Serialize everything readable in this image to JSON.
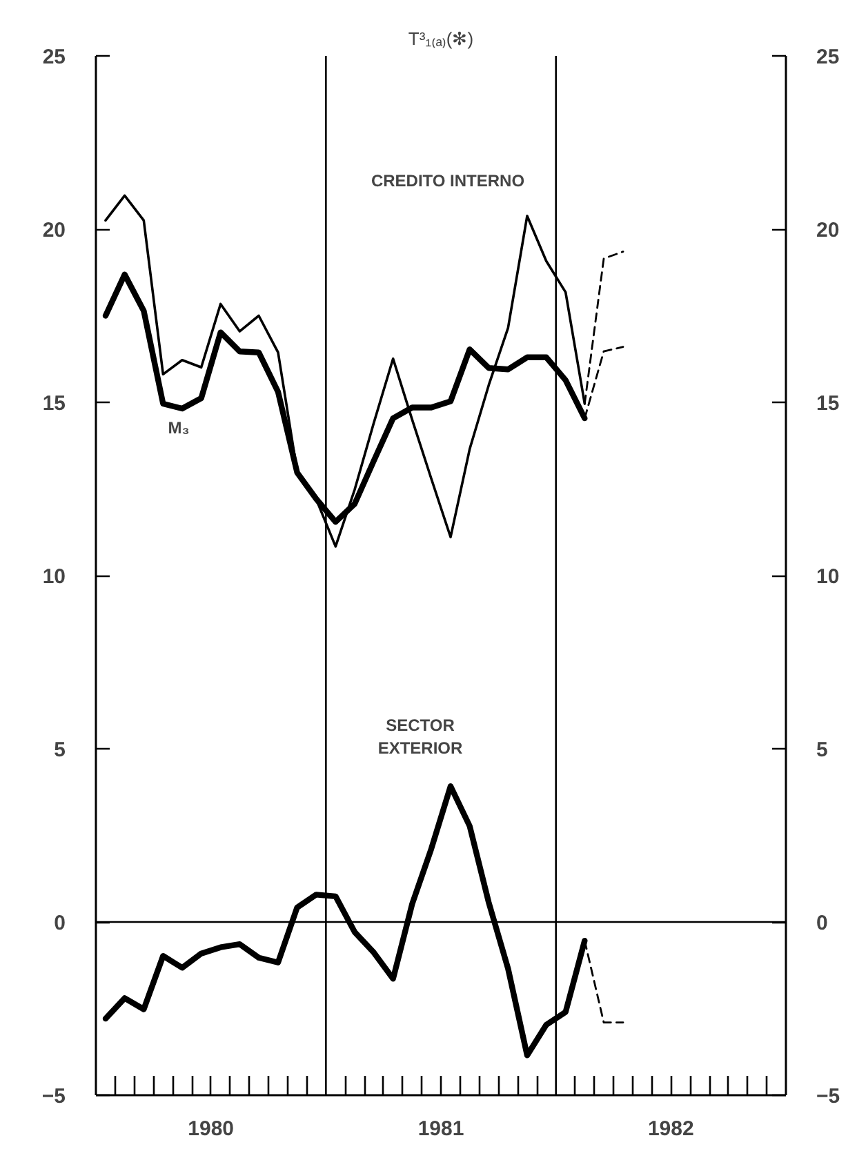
{
  "chart_data": {
    "type": "line",
    "subtitle": "T³₁₍ₐ₎(✻)",
    "xlim": [
      1980,
      1983
    ],
    "ylim": [
      -5,
      25
    ],
    "yticks": [
      -5,
      0,
      5,
      10,
      15,
      20,
      25
    ],
    "y2lim": [
      -5,
      25
    ],
    "y2ticks": [
      -5,
      0,
      5,
      10,
      15,
      20,
      25
    ],
    "xticks": [
      {
        "value": 1980.083,
        "label": null
      },
      {
        "value": 1980.167,
        "label": null
      },
      {
        "value": 1980.25,
        "label": null
      },
      {
        "value": 1980.333,
        "label": null
      },
      {
        "value": 1980.417,
        "label": null
      },
      {
        "value": 1980.5,
        "label": "1980"
      },
      {
        "value": 1980.583,
        "label": null
      },
      {
        "value": 1980.667,
        "label": null
      },
      {
        "value": 1980.75,
        "label": null
      },
      {
        "value": 1980.833,
        "label": null
      },
      {
        "value": 1980.917,
        "label": null
      },
      {
        "value": 1981.083,
        "label": null
      },
      {
        "value": 1981.167,
        "label": null
      },
      {
        "value": 1981.25,
        "label": null
      },
      {
        "value": 1981.333,
        "label": null
      },
      {
        "value": 1981.417,
        "label": null
      },
      {
        "value": 1981.5,
        "label": "1981"
      },
      {
        "value": 1981.583,
        "label": null
      },
      {
        "value": 1981.667,
        "label": null
      },
      {
        "value": 1981.75,
        "label": null
      },
      {
        "value": 1981.833,
        "label": null
      },
      {
        "value": 1981.917,
        "label": null
      },
      {
        "value": 1982.083,
        "label": null
      },
      {
        "value": 1982.167,
        "label": null
      },
      {
        "value": 1982.25,
        "label": null
      },
      {
        "value": 1982.333,
        "label": null
      },
      {
        "value": 1982.417,
        "label": null
      },
      {
        "value": 1982.5,
        "label": "1982"
      },
      {
        "value": 1982.583,
        "label": null
      },
      {
        "value": 1982.667,
        "label": null
      },
      {
        "value": 1982.75,
        "label": null
      },
      {
        "value": 1982.833,
        "label": null
      },
      {
        "value": 1982.917,
        "label": null
      }
    ],
    "x": [
      1980.042,
      1980.125,
      1980.208,
      1980.292,
      1980.375,
      1980.458,
      1980.542,
      1980.625,
      1980.708,
      1980.792,
      1980.875,
      1980.958,
      1981.042,
      1981.125,
      1981.208,
      1981.292,
      1981.375,
      1981.458,
      1981.542,
      1981.625,
      1981.708,
      1981.792,
      1981.875,
      1981.958,
      1982.042,
      1982.125
    ],
    "series": [
      {
        "color": "#000000",
        "values": [
          20.25,
          20.97,
          20.25,
          15.81,
          16.22,
          16.01,
          17.84,
          17.05,
          17.5,
          16.44,
          13.0,
          12.2,
          10.84,
          12.48,
          14.4,
          16.26,
          14.5,
          12.8,
          11.11,
          13.65,
          15.5,
          17.15,
          20.38,
          19.08,
          18.18,
          14.96
        ]
      },
      {
        "color": "#000000",
        "values": [
          17.5,
          18.69,
          17.64,
          14.96,
          14.82,
          15.12,
          17.02,
          16.47,
          16.44,
          15.3,
          12.97,
          12.21,
          11.55,
          12.07,
          13.31,
          14.54,
          14.85,
          14.85,
          15.03,
          16.53,
          15.99,
          15.95,
          16.3,
          16.3,
          15.64,
          14.54
        ]
      },
      {
        "color": "#000000",
        "values": [
          -2.79,
          -2.2,
          -2.52,
          -0.98,
          -1.32,
          -0.91,
          -0.73,
          -0.64,
          -1.03,
          -1.17,
          0.42,
          0.79,
          0.74,
          -0.29,
          -0.88,
          -1.64,
          0.52,
          2.11,
          3.92,
          2.77,
          0.56,
          -1.35,
          -3.85,
          -2.97,
          -2.6,
          -0.54
        ]
      },
      {
        "color": "#000000",
        "line_style": "dashed",
        "x": [
          1982.125,
          1982.208,
          1982.292
        ],
        "values": [
          14.96,
          19.15,
          19.35
        ]
      },
      {
        "color": "#000000",
        "line_style": "dashed",
        "x": [
          1982.125,
          1982.208,
          1982.292
        ],
        "values": [
          14.54,
          16.47,
          16.6
        ]
      },
      {
        "color": "#000000",
        "line_style": "dashed",
        "x": [
          1982.125,
          1982.208,
          1982.292
        ],
        "values": [
          -0.54,
          -2.9,
          -2.9
        ]
      }
    ],
    "ref_lines": [
      {
        "axis": "x",
        "value": 1981,
        "color": "#000000"
      },
      {
        "axis": "x",
        "value": 1982,
        "color": "#000000"
      },
      {
        "axis": "y",
        "value": 0,
        "color": "#000000"
      }
    ],
    "annotations": [
      "CREDITO INTERNO",
      "M₃",
      "SECTOR\nEXTERIOR"
    ],
    "line_style": "solid",
    "marker": "none",
    "grid": false
  }
}
